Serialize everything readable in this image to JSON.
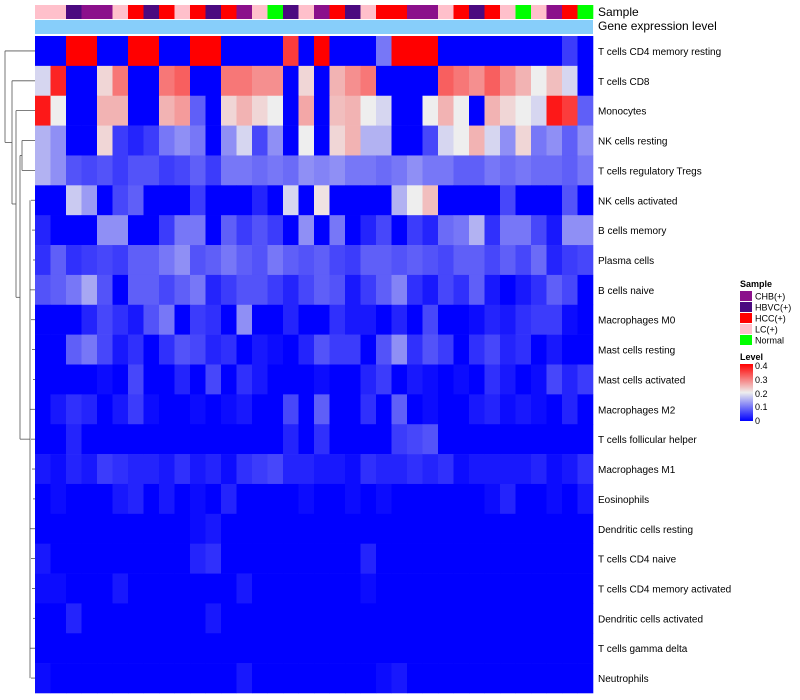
{
  "chart_data": {
    "type": "heatmap",
    "title": "",
    "column_annotations": {
      "sample_label": "Sample",
      "gene_expression_label": "Gene expression level",
      "samples": [
        "LC(+)",
        "LC(+)",
        "HBVC(+)",
        "CHB(+)",
        "CHB(+)",
        "LC(+)",
        "HCC(+)",
        "HBVC(+)",
        "HCC(+)",
        "LC(+)",
        "HCC(+)",
        "HBVC(+)",
        "HCC(+)",
        "CHB(+)",
        "LC(+)",
        "Normal",
        "HBVC(+)",
        "LC(+)",
        "CHB(+)",
        "HCC(+)",
        "HBVC(+)",
        "LC(+)",
        "HCC(+)",
        "HCC(+)",
        "CHB(+)",
        "CHB(+)",
        "LC(+)",
        "HCC(+)",
        "HBVC(+)",
        "HCC(+)",
        "LC(+)",
        "Normal",
        "LC(+)",
        "CHB(+)",
        "HCC(+)",
        "Normal"
      ]
    },
    "rows": [
      "T cells CD4 memory resting",
      "T cells CD8",
      "Monocytes",
      "NK cells resting",
      "T cells regulatory  Tregs",
      "NK cells activated",
      "B cells memory",
      "Plasma cells",
      "B cells naive",
      "Macrophages M0",
      "Mast cells resting",
      "Mast cells activated",
      "Macrophages M2",
      "T cells follicular helper",
      "Macrophages M1",
      "Eosinophils",
      "Dendritic cells resting",
      "T cells CD4 naive",
      "T cells CD4 memory activated",
      "Dendritic cells activated",
      "T cells gamma delta",
      "Neutrophils"
    ],
    "values": [
      [
        0,
        0,
        0.4,
        0.4,
        0,
        0,
        0.4,
        0.4,
        0,
        0,
        0.4,
        0.4,
        0,
        0,
        0,
        0,
        0.35,
        0,
        0.4,
        0,
        0,
        0,
        0.1,
        0.4,
        0.4,
        0.4,
        0,
        0,
        0,
        0,
        0,
        0,
        0,
        0,
        0.05,
        0
      ],
      [
        0.18,
        0.37,
        0,
        0,
        0.22,
        0.3,
        0,
        0,
        0.3,
        0.32,
        0,
        0,
        0.3,
        0.3,
        0.28,
        0.28,
        0,
        0.22,
        0,
        0.25,
        0.28,
        0.3,
        0,
        0,
        0,
        0,
        0.32,
        0.3,
        0.28,
        0.32,
        0.28,
        0.25,
        0.2,
        0.24,
        0.18,
        0
      ],
      [
        0.38,
        0.2,
        0,
        0,
        0.25,
        0.25,
        0,
        0,
        0.25,
        0.27,
        0.08,
        0,
        0.22,
        0.25,
        0.22,
        0.2,
        0,
        0.26,
        0,
        0.24,
        0.25,
        0.2,
        0.18,
        0,
        0,
        0.2,
        0.25,
        0.2,
        0,
        0.25,
        0.22,
        0.2,
        0.18,
        0.38,
        0.35,
        0.08
      ],
      [
        0.15,
        0.12,
        0,
        0,
        0.22,
        0.05,
        0.03,
        0.05,
        0.1,
        0.12,
        0.1,
        0,
        0.12,
        0.18,
        0.06,
        0.12,
        0,
        0.2,
        0,
        0.22,
        0.25,
        0.15,
        0.15,
        0,
        0,
        0.06,
        0.18,
        0.2,
        0.25,
        0.18,
        0.12,
        0.22,
        0.1,
        0.12,
        0.08,
        0.12
      ],
      [
        0.15,
        0.12,
        0.07,
        0.06,
        0.07,
        0.05,
        0.07,
        0.07,
        0.05,
        0.06,
        0.08,
        0.05,
        0.1,
        0.1,
        0.09,
        0.1,
        0.09,
        0.12,
        0.11,
        0.12,
        0.1,
        0.1,
        0.09,
        0.1,
        0.12,
        0.1,
        0.1,
        0.08,
        0.08,
        0.1,
        0.09,
        0.1,
        0.09,
        0.09,
        0.08,
        0.1
      ],
      [
        0,
        0,
        0.17,
        0.13,
        0,
        0.06,
        0.08,
        0,
        0,
        0,
        0.05,
        0,
        0,
        0,
        0.03,
        0,
        0.18,
        0,
        0.21,
        0,
        0,
        0,
        0,
        0.15,
        0.2,
        0.24,
        0,
        0,
        0,
        0,
        0.06,
        0,
        0,
        0,
        0.07,
        0
      ],
      [
        0.03,
        0,
        0,
        0,
        0.12,
        0.12,
        0,
        0,
        0.05,
        0.1,
        0.1,
        0,
        0.08,
        0.05,
        0.07,
        0.05,
        0,
        0.12,
        0,
        0.1,
        0,
        0.03,
        0.06,
        0,
        0.05,
        0.03,
        0.09,
        0.1,
        0.15,
        0.04,
        0.1,
        0.1,
        0.06,
        0.02,
        0.12,
        0.12
      ],
      [
        0.04,
        0.08,
        0.04,
        0.05,
        0.06,
        0.05,
        0.08,
        0.08,
        0.1,
        0.12,
        0.07,
        0.08,
        0.1,
        0.08,
        0.07,
        0.1,
        0.08,
        0.07,
        0.08,
        0.06,
        0.05,
        0.08,
        0.08,
        0.07,
        0.08,
        0.07,
        0.06,
        0.08,
        0.08,
        0.06,
        0.08,
        0.06,
        0.09,
        0.03,
        0.05,
        0.06
      ],
      [
        0.07,
        0.08,
        0.1,
        0.14,
        0.07,
        0,
        0.08,
        0.08,
        0.06,
        0.08,
        0.1,
        0.03,
        0.05,
        0.07,
        0.07,
        0.05,
        0.03,
        0.06,
        0.08,
        0.07,
        0.02,
        0.05,
        0.08,
        0.11,
        0.04,
        0.02,
        0.06,
        0.04,
        0.08,
        0.02,
        0,
        0.02,
        0.04,
        0.08,
        0.06,
        0
      ],
      [
        0,
        0,
        0,
        0.03,
        0.06,
        0.04,
        0.02,
        0.07,
        0.1,
        0,
        0.05,
        0.04,
        0,
        0.12,
        0,
        0,
        0.03,
        0,
        0,
        0.04,
        0.02,
        0.02,
        0,
        0.03,
        0,
        0.06,
        0,
        0,
        0.01,
        0.03,
        0.02,
        0.04,
        0.05,
        0.05,
        0.01,
        0
      ],
      [
        0,
        0,
        0.08,
        0.1,
        0.06,
        0.02,
        0.04,
        0,
        0.04,
        0.07,
        0.06,
        0.03,
        0.04,
        0,
        0.02,
        0.01,
        0,
        0.03,
        0.07,
        0.05,
        0.05,
        0,
        0.07,
        0.12,
        0.04,
        0.07,
        0.05,
        0,
        0.04,
        0.06,
        0.03,
        0.04,
        0,
        0.02,
        0,
        0
      ],
      [
        0,
        0,
        0,
        0,
        0.01,
        0,
        0.06,
        0,
        0,
        0.03,
        0,
        0.06,
        0,
        0.04,
        0.02,
        0,
        0,
        0,
        0.01,
        0,
        0,
        0.03,
        0.05,
        0,
        0.02,
        0.01,
        0,
        0.01,
        0,
        0.04,
        0.02,
        0,
        0.01,
        0.06,
        0.03,
        0.05
      ],
      [
        0,
        0.02,
        0.04,
        0.03,
        0,
        0.02,
        0.05,
        0.01,
        0,
        0,
        0.01,
        0,
        0.01,
        0.02,
        0,
        0,
        0.06,
        0,
        0.08,
        0,
        0,
        0.04,
        0,
        0.08,
        0,
        0.01,
        0,
        0,
        0.02,
        0.03,
        0.01,
        0.02,
        0.01,
        0,
        0.03,
        0
      ],
      [
        0,
        0,
        0.03,
        0,
        0,
        0,
        0,
        0,
        0,
        0,
        0,
        0,
        0,
        0,
        0,
        0,
        0.03,
        0,
        0.04,
        0,
        0,
        0,
        0,
        0.05,
        0.06,
        0.07,
        0,
        0,
        0,
        0,
        0,
        0,
        0,
        0,
        0,
        0
      ],
      [
        0.02,
        0.01,
        0.03,
        0.02,
        0.05,
        0.04,
        0.03,
        0.03,
        0.02,
        0.04,
        0.02,
        0.03,
        0.01,
        0.04,
        0.05,
        0.06,
        0.03,
        0.03,
        0.02,
        0.02,
        0.01,
        0.04,
        0.03,
        0.03,
        0.04,
        0.03,
        0.04,
        0.01,
        0.02,
        0.02,
        0.02,
        0.02,
        0.03,
        0.01,
        0.02,
        0.04
      ],
      [
        0,
        0.01,
        0,
        0,
        0,
        0.02,
        0.03,
        0,
        0.02,
        0,
        0.01,
        0,
        0.03,
        0,
        0,
        0,
        0,
        0.01,
        0,
        0,
        0.01,
        0,
        0.01,
        0,
        0,
        0,
        0,
        0,
        0,
        0.01,
        0.03,
        0,
        0,
        0.01,
        0,
        0.02
      ],
      [
        0,
        0,
        0,
        0,
        0,
        0,
        0,
        0,
        0,
        0,
        0.01,
        0.02,
        0,
        0,
        0,
        0,
        0,
        0,
        0,
        0,
        0,
        0,
        0,
        0,
        0,
        0,
        0,
        0,
        0,
        0,
        0,
        0,
        0,
        0,
        0,
        0
      ],
      [
        0.02,
        0,
        0,
        0,
        0,
        0,
        0,
        0,
        0,
        0,
        0.03,
        0.04,
        0,
        0,
        0,
        0,
        0,
        0,
        0,
        0,
        0,
        0.03,
        0,
        0,
        0,
        0,
        0,
        0,
        0,
        0,
        0,
        0,
        0,
        0,
        0,
        0
      ],
      [
        0.01,
        0.01,
        0,
        0,
        0,
        0.02,
        0,
        0,
        0,
        0,
        0,
        0,
        0,
        0.02,
        0,
        0,
        0,
        0,
        0,
        0,
        0,
        0.01,
        0,
        0,
        0,
        0,
        0,
        0,
        0,
        0,
        0,
        0,
        0,
        0,
        0,
        0
      ],
      [
        0,
        0,
        0.03,
        0,
        0,
        0,
        0,
        0,
        0,
        0,
        0,
        0.02,
        0,
        0,
        0,
        0,
        0,
        0,
        0,
        0,
        0,
        0,
        0,
        0,
        0,
        0,
        0,
        0,
        0,
        0,
        0,
        0,
        0,
        0,
        0,
        0
      ],
      [
        0,
        0,
        0,
        0,
        0,
        0,
        0,
        0,
        0,
        0,
        0,
        0,
        0,
        0,
        0,
        0,
        0,
        0,
        0,
        0,
        0,
        0,
        0,
        0,
        0,
        0,
        0,
        0,
        0,
        0,
        0,
        0,
        0,
        0,
        0,
        0
      ],
      [
        0.01,
        0,
        0,
        0,
        0,
        0,
        0,
        0,
        0,
        0,
        0,
        0,
        0,
        0.02,
        0,
        0,
        0,
        0,
        0,
        0,
        0,
        0,
        0.01,
        0.02,
        0,
        0,
        0,
        0,
        0,
        0,
        0,
        0,
        0,
        0,
        0,
        0
      ]
    ],
    "color_scale": {
      "min": 0,
      "max": 0.4,
      "low_color": "#0000ff",
      "mid_color": "#eeeeee",
      "high_color": "#ff0000"
    },
    "legend": {
      "sample_title": "Sample",
      "sample_entries": [
        {
          "label": "CHB(+)",
          "color": "#8b108b"
        },
        {
          "label": "HBVC(+)",
          "color": "#4b0a80"
        },
        {
          "label": "HCC(+)",
          "color": "#ff0000"
        },
        {
          "label": "LC(+)",
          "color": "#ffc0cb"
        },
        {
          "label": "Normal",
          "color": "#00ff00"
        }
      ],
      "level_title": "Level",
      "level_ticks": [
        "0.4",
        "0.3",
        "0.2",
        "0.1",
        "0"
      ]
    },
    "gene_expression_color": "#87cefa",
    "dendrogram": "rows"
  }
}
